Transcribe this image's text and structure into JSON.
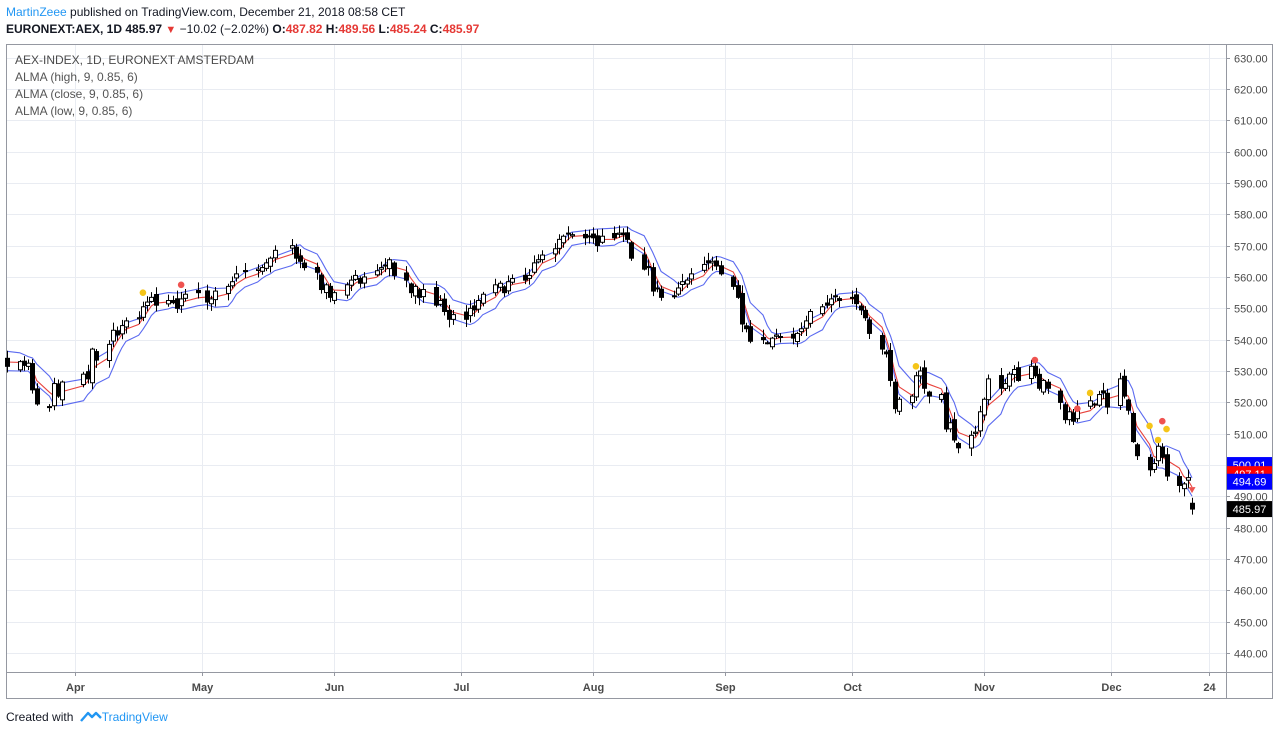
{
  "header": {
    "author": "MartinZeee",
    "published_text": "published on TradingView.com, December 21, 2018 08:58 CET",
    "symbol": "EURONEXT:AEX, 1D",
    "last": "485.97",
    "change": "−10.02 (−2.02%)",
    "open_label": "O:",
    "open": "487.82",
    "high_label": "H:",
    "high": "489.56",
    "low_label": "L:",
    "low": "485.24",
    "close_label": "C:",
    "close": "485.97"
  },
  "legend": {
    "title": "AEX-INDEX, 1D, EURONEXT AMSTERDAM",
    "line1": "ALMA (high, 9, 0.85, 6)",
    "line2": "ALMA (close, 9, 0.85, 6)",
    "line3": "ALMA (low, 9, 0.85, 6)"
  },
  "footer": {
    "created_with": "Created with",
    "brand": "TradingView"
  },
  "colors": {
    "alma_high": "#5b6af0",
    "alma_close": "#e8423c",
    "alma_low": "#5b6af0",
    "dot_red": "#ef5350",
    "dot_yellow": "#f5c518",
    "accent": "#2196f3"
  },
  "chart_data": {
    "type": "candlestick",
    "ylim": [
      434,
      634
    ],
    "y_ticks": [
      "630.00",
      "620.00",
      "610.00",
      "600.00",
      "590.00",
      "580.00",
      "570.00",
      "560.00",
      "550.00",
      "540.00",
      "530.00",
      "520.00",
      "510.00",
      "500.00",
      "490.00",
      "480.00",
      "470.00",
      "460.00",
      "450.00",
      "440.00"
    ],
    "x_labels": [
      {
        "label": "Apr",
        "date": "2018-04-01"
      },
      {
        "label": "May",
        "date": "2018-05-01"
      },
      {
        "label": "Jun",
        "date": "2018-06-01"
      },
      {
        "label": "Jul",
        "date": "2018-07-01"
      },
      {
        "label": "Aug",
        "date": "2018-08-01"
      },
      {
        "label": "Sep",
        "date": "2018-09-01"
      },
      {
        "label": "Oct",
        "date": "2018-10-01"
      },
      {
        "label": "Nov",
        "date": "2018-11-01"
      },
      {
        "label": "Dec",
        "date": "2018-12-01"
      },
      {
        "label": "24",
        "date": "2018-12-24"
      }
    ],
    "x_start": "2018-03-16",
    "x_end": "2018-12-28",
    "price_labels": [
      {
        "value": 500.01,
        "text": "500.01",
        "color": "#0000ff"
      },
      {
        "value": 497.11,
        "text": "497.11",
        "color": "#ff0000"
      },
      {
        "value": 494.69,
        "text": "494.69",
        "color": "#0000ff"
      },
      {
        "value": 485.97,
        "text": "485.97",
        "color": "#000000"
      }
    ],
    "closes": [
      [
        "2018-03-16",
        531.5
      ],
      [
        "2018-03-19",
        533.0
      ],
      [
        "2018-03-20",
        531.8
      ],
      [
        "2018-03-21",
        532.5
      ],
      [
        "2018-03-22",
        524.0
      ],
      [
        "2018-03-23",
        519.5
      ],
      [
        "2018-03-26",
        518.5
      ],
      [
        "2018-03-27",
        526.0
      ],
      [
        "2018-03-28",
        522.0
      ],
      [
        "2018-03-29",
        526.5
      ],
      [
        "2018-04-03",
        529.0
      ],
      [
        "2018-04-04",
        527.5
      ],
      [
        "2018-04-05",
        537.0
      ],
      [
        "2018-04-06",
        533.5
      ],
      [
        "2018-04-09",
        538.5
      ],
      [
        "2018-04-10",
        543.0
      ],
      [
        "2018-04-11",
        541.5
      ],
      [
        "2018-04-12",
        544.5
      ],
      [
        "2018-04-13",
        546.0
      ],
      [
        "2018-04-16",
        547.0
      ],
      [
        "2018-04-17",
        550.5
      ],
      [
        "2018-04-18",
        552.0
      ],
      [
        "2018-04-19",
        553.5
      ],
      [
        "2018-04-20",
        551.0
      ],
      [
        "2018-04-23",
        552.5
      ],
      [
        "2018-04-24",
        551.8
      ],
      [
        "2018-04-25",
        550.0
      ],
      [
        "2018-04-26",
        553.0
      ],
      [
        "2018-04-27",
        554.5
      ],
      [
        "2018-04-30",
        555.0
      ],
      [
        "2018-05-02",
        552.0
      ],
      [
        "2018-05-03",
        553.0
      ],
      [
        "2018-05-04",
        555.5
      ],
      [
        "2018-05-07",
        557.0
      ],
      [
        "2018-05-08",
        558.5
      ],
      [
        "2018-05-09",
        561.0
      ],
      [
        "2018-05-11",
        562.0
      ],
      [
        "2018-05-14",
        562.5
      ],
      [
        "2018-05-15",
        563.0
      ],
      [
        "2018-05-16",
        564.5
      ],
      [
        "2018-05-17",
        566.0
      ],
      [
        "2018-05-18",
        568.5
      ],
      [
        "2018-05-22",
        570.0
      ],
      [
        "2018-05-23",
        566.0
      ],
      [
        "2018-05-24",
        565.0
      ],
      [
        "2018-05-25",
        563.0
      ],
      [
        "2018-05-28",
        561.5
      ],
      [
        "2018-05-29",
        556.0
      ],
      [
        "2018-05-30",
        557.5
      ],
      [
        "2018-05-31",
        553.5
      ],
      [
        "2018-06-01",
        555.0
      ],
      [
        "2018-06-04",
        557.5
      ],
      [
        "2018-06-05",
        559.0
      ],
      [
        "2018-06-06",
        560.5
      ],
      [
        "2018-06-07",
        558.0
      ],
      [
        "2018-06-08",
        560.0
      ],
      [
        "2018-06-11",
        562.0
      ],
      [
        "2018-06-12",
        563.0
      ],
      [
        "2018-06-13",
        563.5
      ],
      [
        "2018-06-14",
        565.5
      ],
      [
        "2018-06-15",
        560.5
      ],
      [
        "2018-06-18",
        559.0
      ],
      [
        "2018-06-19",
        555.0
      ],
      [
        "2018-06-20",
        557.0
      ],
      [
        "2018-06-21",
        553.5
      ],
      [
        "2018-06-22",
        556.0
      ],
      [
        "2018-06-25",
        551.0
      ],
      [
        "2018-06-26",
        552.5
      ],
      [
        "2018-06-27",
        549.0
      ],
      [
        "2018-06-28",
        546.5
      ],
      [
        "2018-06-29",
        548.0
      ],
      [
        "2018-07-02",
        546.5
      ],
      [
        "2018-07-03",
        550.0
      ],
      [
        "2018-07-04",
        549.5
      ],
      [
        "2018-07-05",
        552.5
      ],
      [
        "2018-07-06",
        554.5
      ],
      [
        "2018-07-09",
        557.5
      ],
      [
        "2018-07-10",
        558.0
      ],
      [
        "2018-07-11",
        555.0
      ],
      [
        "2018-07-12",
        558.5
      ],
      [
        "2018-07-13",
        559.5
      ],
      [
        "2018-07-16",
        559.0
      ],
      [
        "2018-07-17",
        560.5
      ],
      [
        "2018-07-18",
        564.5
      ],
      [
        "2018-07-19",
        565.5
      ],
      [
        "2018-07-20",
        567.0
      ],
      [
        "2018-07-23",
        569.0
      ],
      [
        "2018-07-24",
        572.0
      ],
      [
        "2018-07-25",
        573.0
      ],
      [
        "2018-07-26",
        574.0
      ],
      [
        "2018-07-27",
        573.5
      ],
      [
        "2018-07-30",
        572.5
      ],
      [
        "2018-07-31",
        573.0
      ],
      [
        "2018-08-01",
        572.5
      ],
      [
        "2018-08-02",
        570.0
      ],
      [
        "2018-08-03",
        573.0
      ],
      [
        "2018-08-06",
        572.5
      ],
      [
        "2018-08-07",
        574.0
      ],
      [
        "2018-08-08",
        573.5
      ],
      [
        "2018-08-09",
        572.0
      ],
      [
        "2018-08-10",
        566.0
      ],
      [
        "2018-08-13",
        562.5
      ],
      [
        "2018-08-14",
        563.0
      ],
      [
        "2018-08-15",
        555.5
      ],
      [
        "2018-08-16",
        556.5
      ],
      [
        "2018-08-17",
        553.5
      ],
      [
        "2018-08-20",
        554.0
      ],
      [
        "2018-08-21",
        556.5
      ],
      [
        "2018-08-22",
        558.5
      ],
      [
        "2018-08-23",
        559.0
      ],
      [
        "2018-08-24",
        561.0
      ],
      [
        "2018-08-27",
        564.0
      ],
      [
        "2018-08-28",
        564.5
      ],
      [
        "2018-08-29",
        565.0
      ],
      [
        "2018-08-30",
        563.5
      ],
      [
        "2018-08-31",
        561.0
      ],
      [
        "2018-09-03",
        557.0
      ],
      [
        "2018-09-04",
        553.5
      ],
      [
        "2018-09-05",
        545.0
      ],
      [
        "2018-09-06",
        543.5
      ],
      [
        "2018-09-07",
        539.5
      ],
      [
        "2018-09-10",
        540.0
      ],
      [
        "2018-09-11",
        539.0
      ],
      [
        "2018-09-12",
        540.5
      ],
      [
        "2018-09-13",
        541.5
      ],
      [
        "2018-09-14",
        541.0
      ],
      [
        "2018-09-17",
        540.5
      ],
      [
        "2018-09-18",
        542.0
      ],
      [
        "2018-09-19",
        543.5
      ],
      [
        "2018-09-20",
        546.0
      ],
      [
        "2018-09-21",
        549.0
      ],
      [
        "2018-09-24",
        550.5
      ],
      [
        "2018-09-25",
        551.0
      ],
      [
        "2018-09-26",
        553.0
      ],
      [
        "2018-09-27",
        554.0
      ],
      [
        "2018-09-28",
        552.5
      ],
      [
        "2018-10-01",
        553.5
      ],
      [
        "2018-10-02",
        551.5
      ],
      [
        "2018-10-03",
        549.5
      ],
      [
        "2018-10-04",
        547.0
      ],
      [
        "2018-10-05",
        542.0
      ],
      [
        "2018-10-08",
        537.0
      ],
      [
        "2018-10-09",
        535.5
      ],
      [
        "2018-10-10",
        527.0
      ],
      [
        "2018-10-11",
        518.0
      ],
      [
        "2018-10-12",
        521.0
      ],
      [
        "2018-10-15",
        522.0
      ],
      [
        "2018-10-16",
        528.5
      ],
      [
        "2018-10-17",
        530.0
      ],
      [
        "2018-10-18",
        524.5
      ],
      [
        "2018-10-19",
        522.0
      ],
      [
        "2018-10-22",
        522.5
      ],
      [
        "2018-10-23",
        511.5
      ],
      [
        "2018-10-24",
        513.5
      ],
      [
        "2018-10-25",
        508.0
      ],
      [
        "2018-10-26",
        505.5
      ],
      [
        "2018-10-29",
        509.5
      ],
      [
        "2018-10-30",
        510.5
      ],
      [
        "2018-10-31",
        517.0
      ],
      [
        "2018-11-01",
        521.0
      ],
      [
        "2018-11-02",
        527.5
      ],
      [
        "2018-11-05",
        524.5
      ],
      [
        "2018-11-06",
        526.0
      ],
      [
        "2018-11-07",
        529.0
      ],
      [
        "2018-11-08",
        530.5
      ],
      [
        "2018-11-09",
        527.0
      ],
      [
        "2018-11-12",
        531.5
      ],
      [
        "2018-11-13",
        528.5
      ],
      [
        "2018-11-14",
        524.5
      ],
      [
        "2018-11-15",
        527.0
      ],
      [
        "2018-11-16",
        524.5
      ],
      [
        "2018-11-19",
        520.0
      ],
      [
        "2018-11-20",
        514.5
      ],
      [
        "2018-11-21",
        517.0
      ],
      [
        "2018-11-22",
        514.0
      ],
      [
        "2018-11-23",
        518.5
      ],
      [
        "2018-11-26",
        520.5
      ],
      [
        "2018-11-27",
        519.5
      ],
      [
        "2018-11-28",
        522.5
      ],
      [
        "2018-11-29",
        523.0
      ],
      [
        "2018-11-30",
        518.5
      ],
      [
        "2018-12-03",
        527.5
      ],
      [
        "2018-12-04",
        522.0
      ],
      [
        "2018-12-05",
        517.5
      ],
      [
        "2018-12-06",
        507.5
      ],
      [
        "2018-12-07",
        503.0
      ],
      [
        "2018-12-10",
        498.5
      ],
      [
        "2018-12-11",
        500.5
      ],
      [
        "2018-12-12",
        506.0
      ],
      [
        "2018-12-13",
        502.5
      ],
      [
        "2018-12-14",
        496.5
      ],
      [
        "2018-12-17",
        493.5
      ],
      [
        "2018-12-18",
        494.0
      ],
      [
        "2018-12-19",
        496.0
      ],
      [
        "2018-12-20",
        485.97
      ]
    ],
    "signal_dots": [
      {
        "date": "2018-04-17",
        "value": 555.0,
        "color": "yellow"
      },
      {
        "date": "2018-04-26",
        "value": 557.5,
        "color": "red"
      },
      {
        "date": "2018-10-16",
        "value": 531.5,
        "color": "yellow"
      },
      {
        "date": "2018-11-13",
        "value": 533.5,
        "color": "red"
      },
      {
        "date": "2018-11-23",
        "value": 518.0,
        "color": "red"
      },
      {
        "date": "2018-11-26",
        "value": 523.0,
        "color": "yellow"
      },
      {
        "date": "2018-12-10",
        "value": 512.5,
        "color": "yellow"
      },
      {
        "date": "2018-12-12",
        "value": 508.0,
        "color": "yellow"
      },
      {
        "date": "2018-12-13",
        "value": 514.0,
        "color": "red"
      },
      {
        "date": "2018-12-14",
        "value": 511.5,
        "color": "yellow"
      }
    ],
    "last_marker": {
      "date": "2018-12-20",
      "value": 492.0
    }
  }
}
